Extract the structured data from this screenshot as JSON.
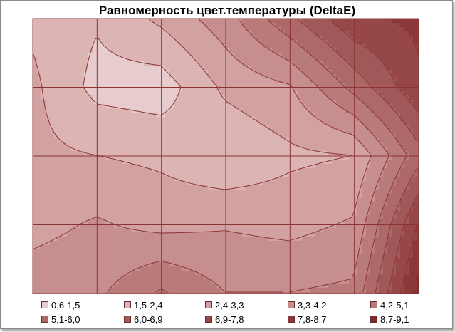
{
  "chart_data": {
    "type": "heatmap",
    "title": "Равномерность цвет.температуры (DeltaE)",
    "xlabel": "",
    "ylabel": "",
    "grid": true,
    "legend_position": "bottom",
    "rows": 4,
    "cols": 6,
    "bands": [
      {
        "label": "0,6-1,5",
        "color": "#e6cccc"
      },
      {
        "label": "1,5-2,4",
        "color": "#dcb4b4"
      },
      {
        "label": "2,4-3,3",
        "color": "#d2a2a2"
      },
      {
        "label": "3,3-4,2",
        "color": "#c68e8e"
      },
      {
        "label": "4,2-5,1",
        "color": "#b97a7a"
      },
      {
        "label": "5,1-6,0",
        "color": "#ad6868"
      },
      {
        "label": "6,0-6,9",
        "color": "#a15858"
      },
      {
        "label": "6,9-7,8",
        "color": "#964848"
      },
      {
        "label": "7,8-8,7",
        "color": "#8b3838"
      },
      {
        "label": "8,7-9,1",
        "color": "#7f2a2a"
      }
    ],
    "grid_values": [
      [
        2.2,
        1.6,
        2.6,
        3.8,
        5.8,
        7.6,
        8.0
      ],
      [
        2.6,
        1.2,
        1.0,
        2.6,
        3.2,
        5.4,
        7.6
      ],
      [
        2.6,
        2.4,
        2.2,
        1.6,
        2.2,
        2.4,
        5.6
      ],
      [
        3.0,
        3.4,
        3.0,
        3.2,
        3.0,
        3.4,
        7.8
      ],
      [
        3.8,
        4.0,
        5.2,
        4.2,
        4.2,
        4.4,
        9.0
      ]
    ]
  }
}
